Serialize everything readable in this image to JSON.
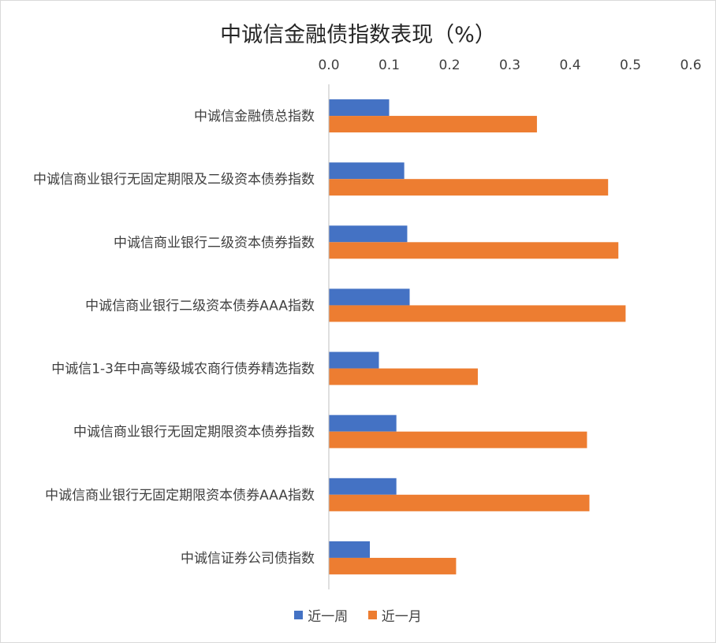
{
  "chart_data": {
    "type": "bar",
    "orientation": "horizontal",
    "title": "中诚信金融债指数表现（%）",
    "categories": [
      "中诚信金融债总指数",
      "中诚信商业银行无固定期限及二级资本债券指数",
      "中诚信商业银行二级资本债券指数",
      "中诚信商业银行二级资本债券AAA指数",
      "中诚信1-3年中高等级城农商行债券精选指数",
      "中诚信商业银行无固定期限资本债券指数",
      "中诚信商业银行无固定期限资本债券AAA指数",
      "中诚信证券公司债指数"
    ],
    "series": [
      {
        "name": "近一周",
        "color": "#4472C4",
        "values": [
          0.1,
          0.125,
          0.13,
          0.134,
          0.083,
          0.112,
          0.112,
          0.068
        ]
      },
      {
        "name": "近一月",
        "color": "#ED7D31",
        "values": [
          0.345,
          0.463,
          0.48,
          0.492,
          0.247,
          0.428,
          0.432,
          0.211
        ]
      }
    ],
    "xlim": [
      0,
      0.6
    ],
    "xticks": [
      "0.0",
      "0.1",
      "0.2",
      "0.3",
      "0.4",
      "0.5",
      "0.6"
    ],
    "x_axis_position": "top",
    "grid": false,
    "legend_position": "bottom"
  }
}
